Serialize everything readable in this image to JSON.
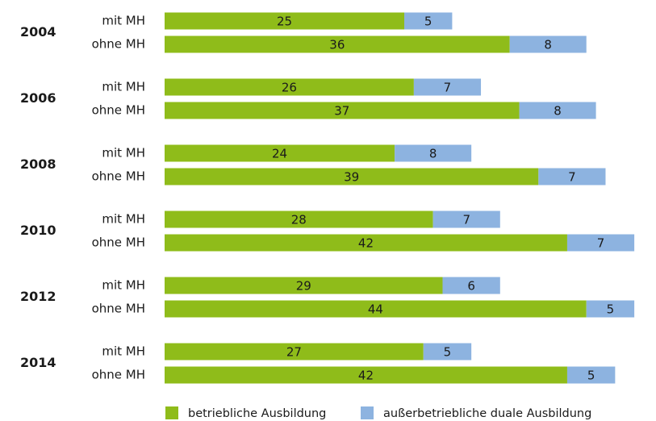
{
  "chart_data": {
    "type": "stacked-bar-horizontal",
    "groups": [
      "2004",
      "2006",
      "2008",
      "2010",
      "2012",
      "2014"
    ],
    "categories": [
      "mit MH",
      "ohne MH",
      "mit MH",
      "ohne MH",
      "mit MH",
      "ohne MH",
      "mit MH",
      "ohne MH",
      "mit MH",
      "ohne MH",
      "mit MH",
      "ohne MH"
    ],
    "series": [
      {
        "name": "betriebliche Ausbildung",
        "color": "#8fbc1a",
        "values": [
          25,
          36,
          26,
          37,
          24,
          39,
          28,
          42,
          29,
          44,
          27,
          42
        ]
      },
      {
        "name": "außerbetriebliche duale Ausbildung",
        "color": "#8db3e0",
        "values": [
          5,
          8,
          7,
          8,
          8,
          7,
          7,
          7,
          6,
          5,
          5,
          5
        ]
      }
    ],
    "legend": "bottom"
  }
}
